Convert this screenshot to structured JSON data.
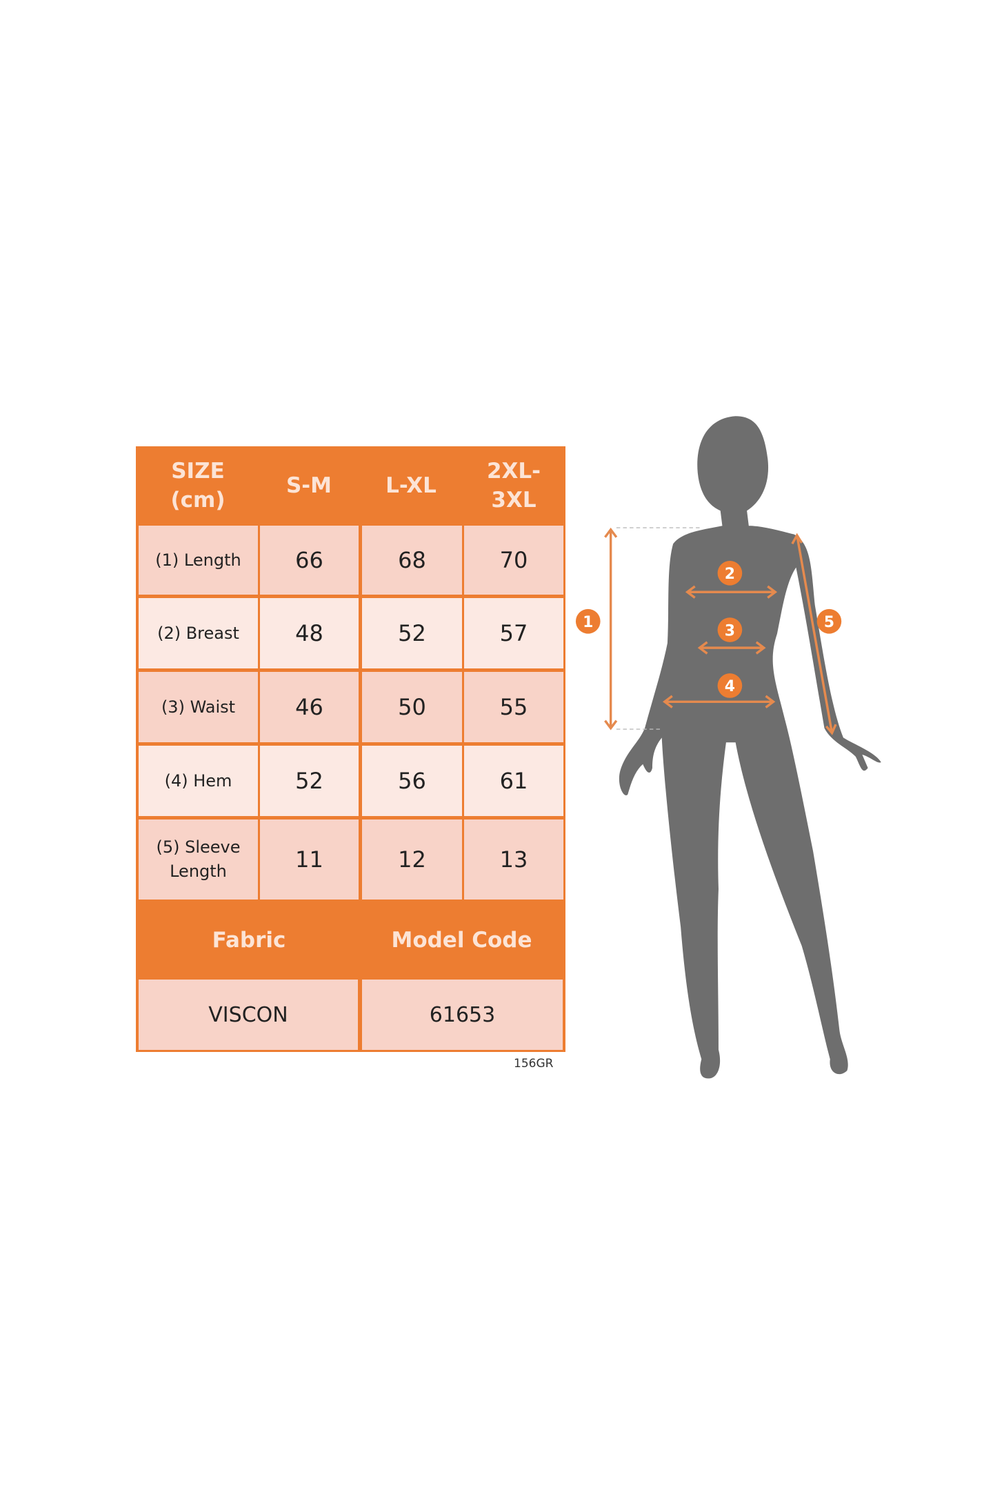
{
  "table": {
    "header": [
      "SIZE (cm)",
      "S-M",
      "L-XL",
      "2XL-3XL"
    ],
    "rows": [
      {
        "label": "(1) Length",
        "values": [
          "66",
          "68",
          "70"
        ]
      },
      {
        "label": "(2) Breast",
        "values": [
          "48",
          "52",
          "57"
        ]
      },
      {
        "label": "(3) Waist",
        "values": [
          "46",
          "50",
          "55"
        ]
      },
      {
        "label": "(4) Hem",
        "values": [
          "52",
          "56",
          "61"
        ]
      },
      {
        "label": "(5) Sleeve Length",
        "values": [
          "11",
          "12",
          "13"
        ]
      }
    ],
    "footer_headers": [
      "Fabric",
      "Model Code"
    ],
    "footer_values": [
      "VISCON",
      "61653"
    ]
  },
  "image_code": "156GR",
  "figure": {
    "markers": [
      "1",
      "2",
      "3",
      "4",
      "5"
    ]
  },
  "colors": {
    "accent": "#ED7D31",
    "cell_dark": "#F8D3C8",
    "cell_light": "#FCE9E3",
    "silhouette": "#6E6E6E"
  }
}
